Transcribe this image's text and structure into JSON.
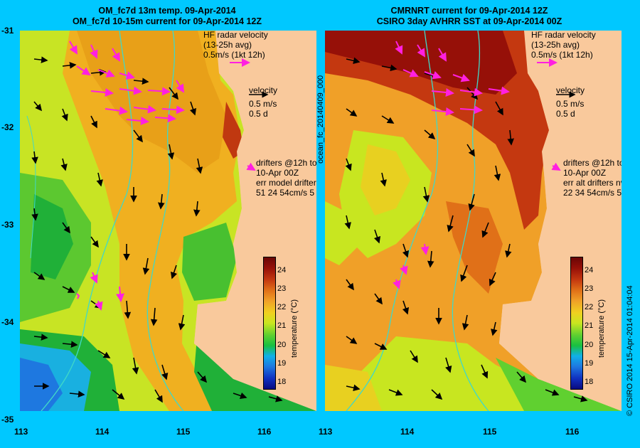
{
  "left_panel": {
    "title_line1": "OM_fc7d 13m temp. 09-Apr-2014",
    "title_line2": "OM_fc7d 10-15m current for 09-Apr-2014 12Z",
    "hf_title": "HF radar velocity",
    "hf_avg": "(13-25h avg)",
    "hf_scale": "0.5m/s (1kt 12h)",
    "velocity_label": "velocity",
    "velocity_ms": "0.5 m/s",
    "velocity_d": "0.5 d",
    "drifters_line1": "drifters @12h to",
    "drifters_line2": "10-Apr 00Z",
    "err_line": "err model drifters n",
    "err_values": "51 24 54cm/s 5"
  },
  "right_panel": {
    "title_line1": "CMRNRT current for 09-Apr-2014 12Z",
    "title_line2": "CSIRO 3day AVHRR SST at 09-Apr-2014 00Z",
    "hf_title": "HF radar velocity",
    "hf_avg": "(13-25h avg)",
    "hf_scale": "0.5m/s (1kt 12h)",
    "velocity_label": "velocity",
    "velocity_ms": "0.5 m/s",
    "velocity_d": "0.5 d",
    "drifters_line1": "drifters @12h to",
    "drifters_line2": "10-Apr 00Z",
    "err_line": "err alt drifters nv",
    "err_values": "22 34 54cm/s 5",
    "side_label": "ocean_fc_20140409_000"
  },
  "axes": {
    "lat_ticks": [
      "-31",
      "-32",
      "-33",
      "-34",
      "-35"
    ],
    "lon_ticks_left": [
      "113",
      "114",
      "115",
      "116"
    ],
    "lon_ticks_right": [
      "113",
      "114",
      "115",
      "116"
    ]
  },
  "colorbar": {
    "ticks": [
      "24",
      "23",
      "22",
      "21",
      "20",
      "19",
      "18"
    ],
    "title": "temperature (°C)"
  },
  "footer": {
    "credit": "© CSIRO 2014   15-Apr-2014 01:04:04"
  },
  "colors": {
    "background": "#00c8ff",
    "land": "#f9c99c",
    "hf_arrow": "#ff20e0",
    "isobath": "#40d8c8"
  }
}
